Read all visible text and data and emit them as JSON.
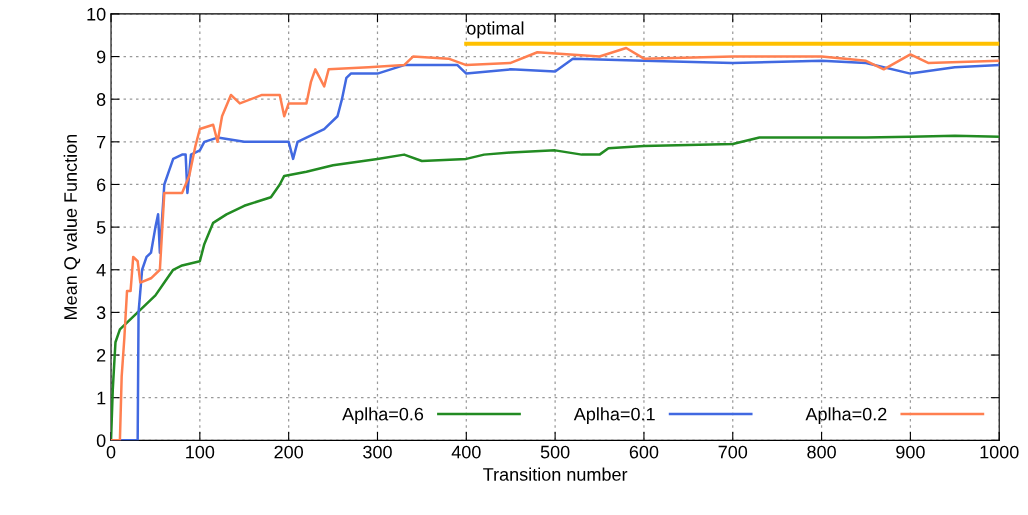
{
  "chart_data": {
    "type": "line",
    "xlabel": "Transition number",
    "ylabel": "Mean Q value Function",
    "xlim": [
      0,
      1000
    ],
    "ylim": [
      0,
      10
    ],
    "xticks": [
      0,
      100,
      200,
      300,
      400,
      500,
      600,
      700,
      800,
      900,
      1000
    ],
    "yticks": [
      0,
      1,
      2,
      3,
      4,
      5,
      6,
      7,
      8,
      9,
      10
    ],
    "grid": true,
    "legend": "bottom right",
    "line_style": "solid",
    "marker": "none",
    "series": [
      {
        "name": "Aplha=0.6",
        "color": "#228b22",
        "x": [
          0,
          2,
          5,
          10,
          20,
          30,
          40,
          50,
          60,
          70,
          80,
          100,
          105,
          115,
          130,
          150,
          180,
          190,
          195,
          220,
          250,
          300,
          330,
          350,
          400,
          420,
          450,
          500,
          530,
          550,
          560,
          600,
          700,
          730,
          800,
          850,
          900,
          950,
          1000
        ],
        "values": [
          0,
          1.2,
          2.3,
          2.6,
          2.8,
          3.0,
          3.2,
          3.4,
          3.7,
          4.0,
          4.1,
          4.2,
          4.6,
          5.1,
          5.3,
          5.5,
          5.7,
          6.0,
          6.2,
          6.3,
          6.45,
          6.6,
          6.7,
          6.55,
          6.6,
          6.7,
          6.75,
          6.8,
          6.7,
          6.7,
          6.85,
          6.9,
          6.95,
          7.1,
          7.1,
          7.1,
          7.12,
          7.14,
          7.12
        ]
      },
      {
        "name": "Aplha=0.1",
        "color": "#4169e1",
        "x": [
          0,
          30,
          31,
          35,
          40,
          45,
          50,
          53,
          55,
          60,
          65,
          70,
          80,
          84,
          86,
          90,
          100,
          105,
          120,
          150,
          200,
          205,
          210,
          230,
          240,
          255,
          260,
          265,
          270,
          300,
          330,
          350,
          390,
          400,
          450,
          500,
          520,
          600,
          700,
          800,
          850,
          900,
          950,
          1000
        ],
        "values": [
          0,
          0,
          3.0,
          4.0,
          4.3,
          4.4,
          5.0,
          5.3,
          4.4,
          6.0,
          6.3,
          6.6,
          6.7,
          6.7,
          5.8,
          6.7,
          6.8,
          7.0,
          7.1,
          7.0,
          7.0,
          6.6,
          7.0,
          7.2,
          7.3,
          7.6,
          8.0,
          8.5,
          8.6,
          8.6,
          8.8,
          8.8,
          8.8,
          8.6,
          8.7,
          8.65,
          8.95,
          8.9,
          8.85,
          8.9,
          8.85,
          8.6,
          8.75,
          8.8
        ]
      },
      {
        "name": "Aplha=0.2",
        "color": "#ff7f50",
        "x": [
          0,
          10,
          12,
          15,
          18,
          22,
          25,
          30,
          33,
          45,
          55,
          60,
          70,
          80,
          88,
          95,
          100,
          115,
          120,
          125,
          135,
          145,
          170,
          190,
          195,
          200,
          220,
          225,
          230,
          240,
          245,
          290,
          330,
          340,
          380,
          400,
          450,
          480,
          550,
          580,
          600,
          700,
          800,
          850,
          870,
          900,
          920,
          1000
        ],
        "values": [
          0,
          0,
          1.5,
          2.4,
          3.5,
          3.5,
          4.3,
          4.2,
          3.7,
          3.8,
          4.0,
          5.8,
          5.8,
          5.8,
          6.2,
          6.9,
          7.3,
          7.4,
          7.0,
          7.6,
          8.1,
          7.9,
          8.1,
          8.1,
          7.6,
          7.9,
          7.9,
          8.4,
          8.7,
          8.3,
          8.7,
          8.75,
          8.8,
          9.0,
          8.95,
          8.8,
          8.85,
          9.1,
          9.0,
          9.2,
          8.95,
          9.0,
          9.0,
          8.9,
          8.7,
          9.05,
          8.85,
          8.9
        ]
      },
      {
        "color": "#ffc000",
        "x": [
          400,
          1000
        ],
        "values": [
          9.3,
          9.3
        ]
      }
    ],
    "annotations": [
      {
        "text": "optimal",
        "x": 400,
        "y": 9.3
      }
    ]
  }
}
